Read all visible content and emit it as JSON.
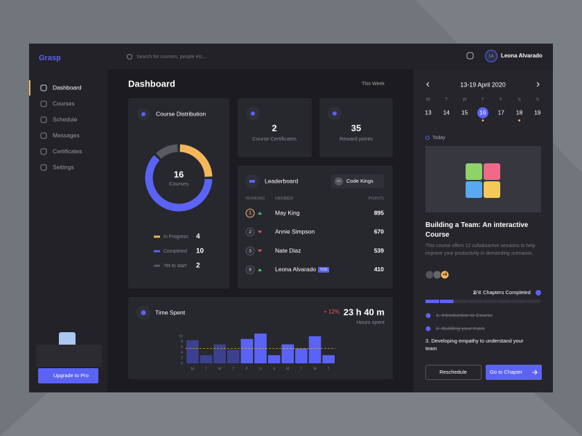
{
  "sidebar": {
    "logo": "Grasp",
    "nav": [
      {
        "label": "Dashboard",
        "active": true
      },
      {
        "label": "Courses"
      },
      {
        "label": "Schedule"
      },
      {
        "label": "Messages"
      },
      {
        "label": "Certificates"
      },
      {
        "label": "Settings"
      }
    ],
    "upgrade": "Upgrade to Pro"
  },
  "header": {
    "search_placeholder": "Search for  courses, people etc...",
    "user_initials": "LA",
    "user_name": "Leona Alvarado"
  },
  "main": {
    "title": "Dashboard",
    "period": "This Week"
  },
  "course_distribution": {
    "title": "Course Distribution",
    "total": 16,
    "total_label": "Courses",
    "segments": [
      {
        "name": "In Progress",
        "value": 4,
        "color": "#f3b75a"
      },
      {
        "name": "Completed",
        "value": 10,
        "color": "#5b63f5"
      },
      {
        "name": "Yet to start",
        "value": 2,
        "color": "#5a5a62"
      }
    ]
  },
  "stats": [
    {
      "value": 2,
      "label": "Course Certificates"
    },
    {
      "value": 35,
      "label": "Reward points"
    }
  ],
  "leaderboard": {
    "title": "Leaderboard",
    "team_initials": "CK",
    "team": "Code Kings",
    "columns": [
      "RANKING",
      "MEMBER",
      "POINTS"
    ],
    "you_tag": "YOU",
    "rows": [
      {
        "rank": 1,
        "trend": "up",
        "member": "May King",
        "points": 895
      },
      {
        "rank": 2,
        "trend": "down",
        "member": "Annie Simpson",
        "points": 670
      },
      {
        "rank": 3,
        "trend": "down",
        "member": "Nate Diaz",
        "points": 539
      },
      {
        "rank": 8,
        "trend": "up",
        "member": "Leona Alvarado",
        "points": 410,
        "you": true
      }
    ]
  },
  "time_spent": {
    "title": "Time Spent",
    "change": "+ 12%",
    "total": "23 h 40 m",
    "total_label": "Hours spent",
    "chart": {
      "type": "bar",
      "categories": [
        "M",
        "T",
        "W",
        "T",
        "F",
        "S",
        "S",
        "M",
        "T",
        "W",
        "T"
      ],
      "values": [
        8.5,
        3,
        7,
        5,
        9,
        11,
        3,
        7,
        5.5,
        10,
        3
      ],
      "colors": [
        "#3c418f",
        "#3c418f",
        "#3c418f",
        "#3c418f",
        "#5b63f5",
        "#5b63f5",
        "#5b63f5",
        "#5b63f5",
        "#5b63f5",
        "#5b63f5",
        "#5b63f5"
      ],
      "ylim": [
        0,
        11.5
      ],
      "yticks": [
        0,
        2,
        4,
        6,
        8,
        10
      ],
      "average": 5.5
    }
  },
  "calendar": {
    "range": "13-19 April 2020",
    "weekdays": [
      "M",
      "T",
      "W",
      "T",
      "F",
      "S",
      "S"
    ],
    "days": [
      {
        "day": 13
      },
      {
        "day": 14
      },
      {
        "day": 15
      },
      {
        "day": 16,
        "selected": true,
        "dot": true
      },
      {
        "day": 17
      },
      {
        "day": 18,
        "dot": true
      },
      {
        "day": 19
      }
    ]
  },
  "course": {
    "today": "Today",
    "title": "Building a Team: An interactive Course",
    "description": "This course offers 12 collaboartive sessions to help improve your productivity in demanding scenarios",
    "more_members": "+6",
    "chapters_done": 2,
    "chapters_total": 8,
    "chapters_label": "Chapters Completed",
    "chapters": [
      {
        "text": "1. Introduction to Course",
        "done": true
      },
      {
        "text": "2. Building your team",
        "done": true
      },
      {
        "text": "3. Developing empathy to  understand your team",
        "done": false
      }
    ],
    "reschedule": "Reschedule",
    "go": "Go to Chapter"
  }
}
